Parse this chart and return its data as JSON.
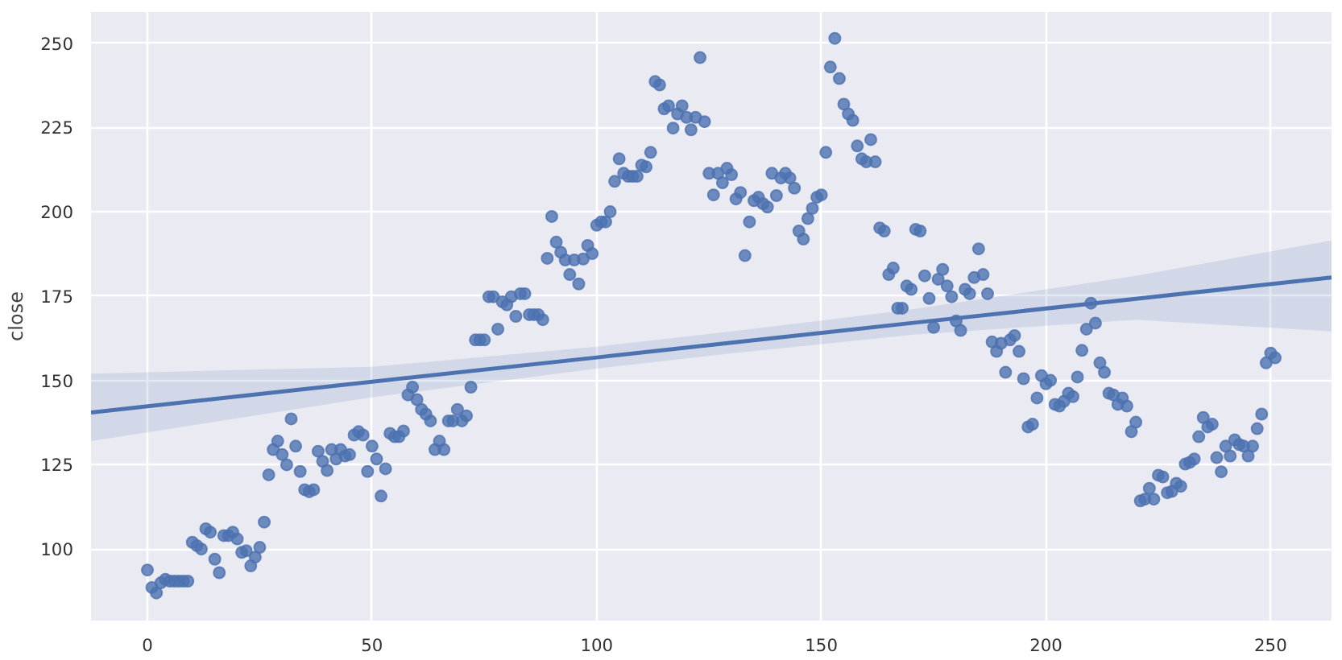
{
  "chart_data": {
    "type": "scatter",
    "ylabel": "close",
    "xlim": [
      -12.55,
      263.55
    ],
    "ylim": [
      78.8,
      259.2
    ],
    "xticks": [
      0,
      50,
      100,
      150,
      200,
      250
    ],
    "yticks": [
      100,
      125,
      150,
      175,
      200,
      225,
      250
    ],
    "grid": true,
    "marker": "circle",
    "series": [
      {
        "type": "scatter",
        "color": "#4c72b0",
        "x": [
          0,
          1,
          2,
          3,
          4,
          5,
          6,
          7,
          8,
          9,
          10,
          11,
          12,
          13,
          14,
          15,
          16,
          17,
          18,
          19,
          20,
          21,
          22,
          23,
          24,
          25,
          26,
          27,
          28,
          29,
          30,
          31,
          32,
          33,
          34,
          35,
          36,
          37,
          38,
          39,
          40,
          41,
          42,
          43,
          44,
          45,
          46,
          47,
          48,
          49,
          50,
          51,
          52,
          53,
          54,
          55,
          56,
          57,
          58,
          59,
          60,
          61,
          62,
          63,
          64,
          65,
          66,
          67,
          68,
          69,
          70,
          71,
          72,
          73,
          74,
          75,
          76,
          77,
          78,
          79,
          80,
          81,
          82,
          83,
          84,
          85,
          86,
          87,
          88,
          89,
          90,
          91,
          92,
          93,
          94,
          95,
          96,
          97,
          98,
          99,
          100,
          101,
          102,
          103,
          104,
          105,
          106,
          107,
          108,
          109,
          110,
          111,
          112,
          113,
          114,
          115,
          116,
          117,
          118,
          119,
          120,
          121,
          122,
          123,
          124,
          125,
          126,
          127,
          128,
          129,
          130,
          131,
          132,
          133,
          134,
          135,
          136,
          137,
          138,
          139,
          140,
          141,
          142,
          143,
          144,
          145,
          146,
          147,
          148,
          149,
          150,
          151,
          152,
          153,
          154,
          155,
          156,
          157,
          158,
          159,
          160,
          161,
          162,
          163,
          164,
          165,
          166,
          167,
          168,
          169,
          170,
          171,
          172,
          173,
          174,
          175,
          176,
          177,
          178,
          179,
          180,
          181,
          182,
          183,
          184,
          185,
          186,
          187,
          188,
          189,
          190,
          191,
          192,
          193,
          194,
          195,
          196,
          197,
          198,
          199,
          200,
          201,
          202,
          203,
          204,
          205,
          206,
          207,
          208,
          209,
          210,
          211,
          212,
          213,
          214,
          215,
          216,
          217,
          218,
          219,
          220,
          221,
          222,
          223,
          224,
          225,
          226,
          227,
          228,
          229,
          230,
          231,
          232,
          233,
          234,
          235,
          236,
          237,
          238,
          239,
          240,
          241,
          242,
          243,
          244,
          245,
          246,
          247,
          248,
          249,
          250,
          251
        ],
        "values": [
          93.8,
          88.6,
          87,
          90,
          91,
          90.5,
          90.5,
          90.5,
          90.5,
          90.5,
          102,
          101,
          100,
          106,
          105,
          97,
          93,
          104,
          104,
          105,
          103,
          99,
          99.5,
          95,
          97.6,
          100.5,
          108,
          122,
          129.5,
          132,
          128,
          125,
          138.6,
          130.5,
          123,
          117.6,
          117,
          117.6,
          129,
          126,
          123.3,
          129.5,
          126.7,
          129.5,
          127.6,
          128,
          133.8,
          134.8,
          133.8,
          123,
          130.5,
          126.7,
          115.7,
          123.8,
          134.3,
          133.3,
          133.3,
          135,
          145.7,
          148,
          144.3,
          141.4,
          140,
          138,
          129.5,
          132,
          129.5,
          138,
          138,
          141.4,
          138,
          139.5,
          148,
          162,
          162,
          162,
          174.8,
          174.8,
          165.2,
          173.3,
          172.4,
          174.8,
          169,
          175.7,
          175.7,
          169.5,
          169.5,
          169.5,
          168,
          186.2,
          198.6,
          191,
          188,
          185.7,
          181.4,
          185.7,
          178.6,
          186,
          190,
          187.6,
          196,
          197,
          197,
          200,
          209,
          215.7,
          211.4,
          210.5,
          210.5,
          210.5,
          213.8,
          213.3,
          217.6,
          238.6,
          237.6,
          230.5,
          231.4,
          224.8,
          229,
          231.4,
          228,
          224.3,
          228,
          245.7,
          226.7,
          211.4,
          205,
          211.4,
          208.6,
          212.9,
          211,
          203.8,
          205.7,
          187,
          197,
          203.3,
          204.3,
          202.4,
          201.4,
          211.4,
          204.8,
          210,
          211.4,
          210,
          207,
          194.3,
          191.9,
          198,
          201,
          204.3,
          205,
          217.6,
          242.9,
          251.4,
          239.5,
          231.9,
          229,
          227.1,
          219.5,
          215.7,
          214.8,
          221.4,
          214.8,
          195.2,
          194.3,
          181.4,
          183.3,
          171.4,
          171.4,
          178,
          177,
          194.8,
          194.3,
          181,
          174.3,
          165.7,
          180,
          182.9,
          178,
          174.8,
          167.6,
          164.8,
          177,
          175.7,
          180.5,
          189,
          181.4,
          175.7,
          161.4,
          158.6,
          161,
          152.4,
          162,
          163.3,
          158.6,
          150.5,
          136.2,
          137,
          144.8,
          151.4,
          149,
          150,
          142.9,
          142.4,
          143.8,
          146.2,
          145.2,
          151,
          158.9,
          165.2,
          172.9,
          167,
          155.2,
          152.4,
          146.2,
          145.7,
          142.9,
          144.8,
          142.4,
          134.8,
          137.6,
          114.3,
          114.8,
          118,
          114.8,
          121.9,
          121.4,
          116.7,
          117.1,
          119.5,
          118.6,
          125.2,
          125.7,
          126.7,
          133.3,
          139,
          136.2,
          137,
          127.1,
          122.9,
          130.5,
          127.6,
          132.4,
          131,
          130.5,
          127.6,
          130.5,
          135.7,
          140,
          155.2,
          158.1,
          156.7
        ]
      },
      {
        "type": "line",
        "color": "#4c72b0",
        "marker": "none",
        "line_style": "solid",
        "x": [
          -12.55,
          50,
          100,
          130,
          170,
          220,
          263.55
        ],
        "values": [
          140.5,
          149.6,
          156.8,
          161.2,
          167,
          174.2,
          180.5
        ],
        "lower": [
          132,
          145,
          153.5,
          158,
          163.5,
          168,
          164.5
        ],
        "upper": [
          152,
          154,
          160,
          164.5,
          171,
          181,
          191.5
        ]
      }
    ]
  }
}
